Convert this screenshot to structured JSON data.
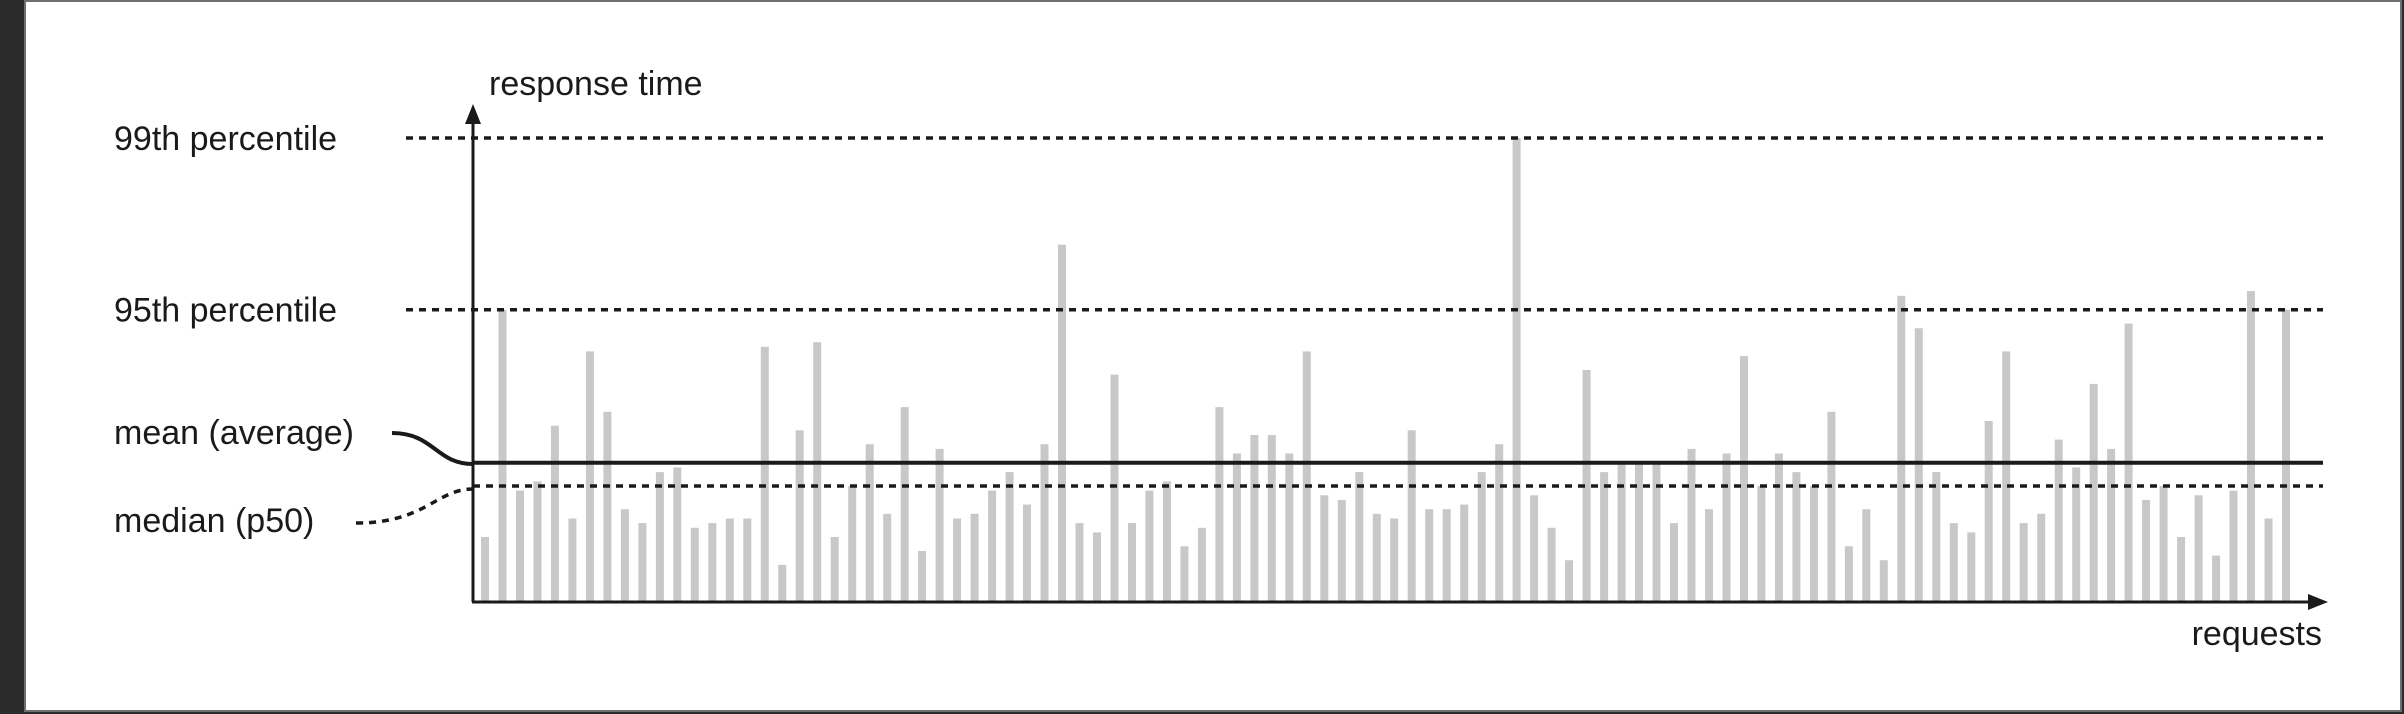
{
  "chart_data": {
    "type": "bar",
    "ylabel": "response time",
    "xlabel": "requests",
    "ylim": [
      0,
      100
    ],
    "reference_lines": [
      {
        "label": "99th percentile",
        "value": 100,
        "style": "dotted"
      },
      {
        "label": "95th percentile",
        "value": 63,
        "style": "dotted"
      },
      {
        "label": "mean (average)",
        "value": 30,
        "style": "solid"
      },
      {
        "label": "median (p50)",
        "value": 25,
        "style": "dotted"
      }
    ],
    "bar_color": "#c8c8c8",
    "line_color": "#1a1a1a",
    "values": [
      14,
      63,
      24,
      26,
      38,
      18,
      54,
      41,
      20,
      17,
      28,
      29,
      16,
      17,
      18,
      18,
      55,
      8,
      37,
      56,
      14,
      25,
      34,
      19,
      42,
      11,
      33,
      18,
      19,
      24,
      28,
      21,
      34,
      77,
      17,
      15,
      49,
      17,
      24,
      26,
      12,
      16,
      42,
      32,
      36,
      36,
      32,
      54,
      23,
      22,
      28,
      19,
      18,
      37,
      20,
      20,
      21,
      28,
      34,
      100,
      23,
      16,
      9,
      50,
      28,
      30,
      30,
      30,
      17,
      33,
      20,
      32,
      53,
      25,
      32,
      28,
      25,
      41,
      12,
      20,
      9,
      66,
      59,
      28,
      17,
      15,
      39,
      54,
      17,
      19,
      35,
      29,
      47,
      33,
      60,
      22,
      25,
      14,
      23,
      10,
      24,
      67,
      18,
      63
    ]
  }
}
